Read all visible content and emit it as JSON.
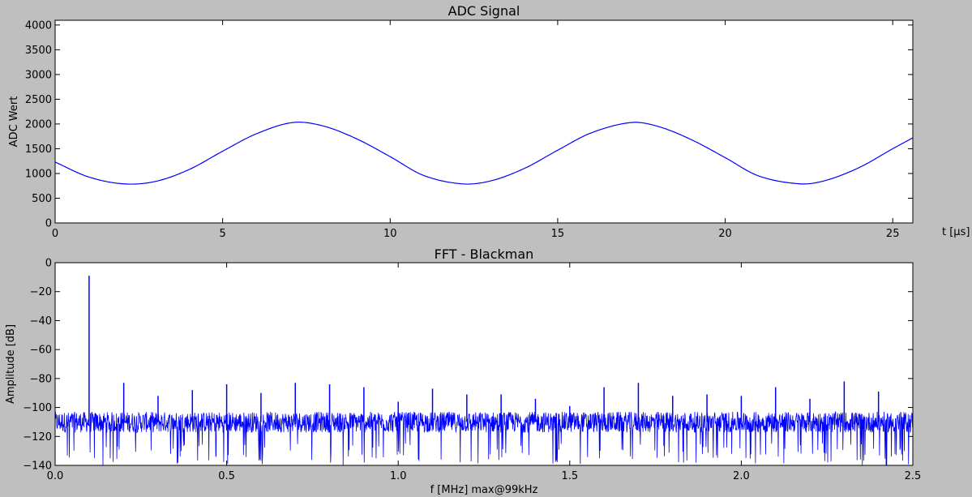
{
  "chart_data": [
    {
      "type": "line",
      "title": "ADC Signal",
      "xlabel": "t [μs]",
      "ylabel": "ADC Wert",
      "xlim": [
        0,
        25.6
      ],
      "ylim": [
        0,
        4096
      ],
      "xticks": [
        0,
        5,
        10,
        15,
        20,
        25
      ],
      "xtick_labels": [
        "0",
        "5",
        "10",
        "15",
        "20",
        "25"
      ],
      "yticks": [
        0,
        500,
        1000,
        1500,
        2000,
        2500,
        3000,
        3500,
        4000
      ],
      "ytick_labels": [
        "0",
        "500",
        "1000",
        "1500",
        "2000",
        "2500",
        "3000",
        "3500",
        "4000"
      ],
      "grid": false,
      "line_color": "#0000ff",
      "series": [
        {
          "x": [
            0,
            1,
            2.05,
            3,
            4,
            5,
            6,
            7.1,
            8,
            9,
            10,
            11,
            12.15,
            13,
            14,
            15,
            16,
            17.2,
            18,
            19,
            20,
            21,
            22.25,
            23,
            24,
            25,
            25.6
          ],
          "values": [
            1230,
            930,
            790,
            840,
            1080,
            1450,
            1800,
            2030,
            1960,
            1700,
            1340,
            960,
            790,
            850,
            1100,
            1470,
            1820,
            2030,
            1950,
            1680,
            1320,
            950,
            790,
            860,
            1120,
            1500,
            1720
          ]
        }
      ]
    },
    {
      "type": "line",
      "title": "FFT - Blackman",
      "xlabel": "f [MHz] max@99kHz",
      "ylabel": "Amplitude [dB]",
      "xlim": [
        0,
        2.5
      ],
      "ylim": [
        -140,
        0
      ],
      "xticks": [
        0,
        0.5,
        1.0,
        1.5,
        2.0,
        2.5
      ],
      "xtick_labels": [
        "0.0",
        "0.5",
        "1.0",
        "1.5",
        "2.0",
        "2.5"
      ],
      "yticks": [
        -140,
        -120,
        -100,
        -80,
        -60,
        -40,
        -20,
        0
      ],
      "ytick_labels": [
        "−140",
        "−120",
        "−100",
        "−80",
        "−60",
        "−40",
        "−20",
        "0"
      ],
      "grid": false,
      "line_color": "#0000ff",
      "noise_floor_db": [
        -125,
        -103
      ],
      "peaks": {
        "x": [
          0.099,
          0.2,
          0.3,
          0.4,
          0.5,
          0.6,
          0.7,
          0.8,
          0.9,
          1.0,
          1.1,
          1.2,
          1.3,
          1.4,
          1.5,
          1.6,
          1.7,
          1.8,
          1.9,
          2.0,
          2.1,
          2.2,
          2.3,
          2.4
        ],
        "values": [
          -9,
          -83,
          -92,
          -88,
          -84,
          -90,
          -83,
          -84,
          -86,
          -96,
          -87,
          -91,
          -91,
          -94,
          -99,
          -86,
          -83,
          -92,
          -91,
          -92,
          -86,
          -94,
          -82,
          -89
        ]
      }
    }
  ]
}
